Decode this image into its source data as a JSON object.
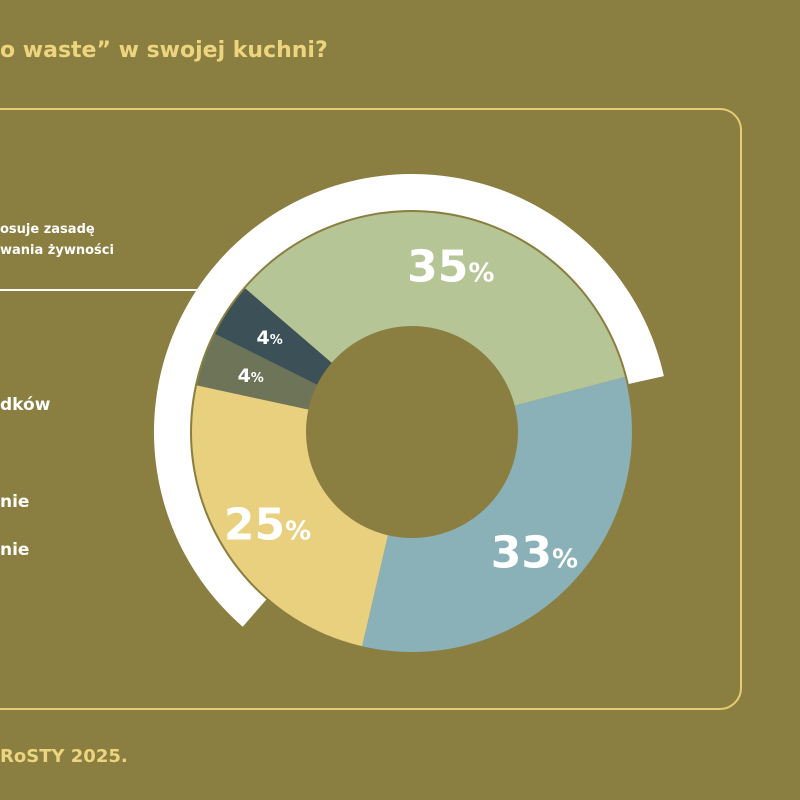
{
  "title": "o waste” w swojej kuchni?",
  "legend": {
    "line1a": "osuje zasadę",
    "line1b": "wania żywności",
    "item2": "dków",
    "item3": "nie",
    "item4": "nie"
  },
  "footer": "RoSTY 2025.",
  "chart_data": {
    "type": "pie",
    "labels": [
      {
        "value": "33",
        "unit": "%"
      },
      {
        "value": "25",
        "unit": "%"
      },
      {
        "value": "4",
        "unit": "%"
      },
      {
        "value": "4",
        "unit": "%"
      },
      {
        "value": "35",
        "unit": "%"
      }
    ],
    "values": [
      33,
      25,
      4,
      4,
      35
    ],
    "colors": [
      "#8ab1b8",
      "#e8d07e",
      "#6d7458",
      "#3c5157",
      "#b6c596"
    ],
    "outer_ring_color": "#ffffff",
    "background": "#8a7e40"
  }
}
